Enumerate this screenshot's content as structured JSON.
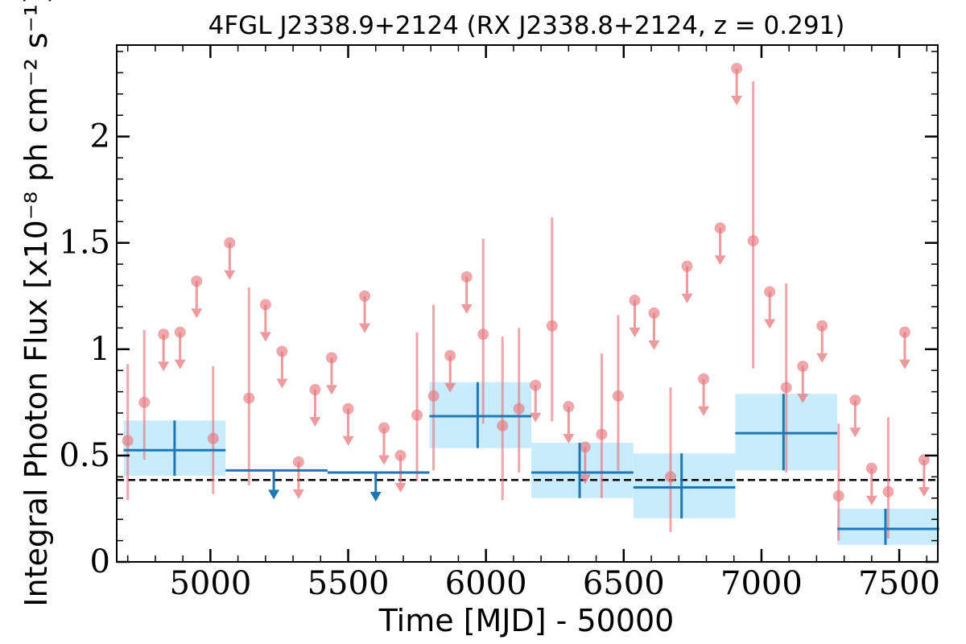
{
  "chart_data": {
    "type": "scatter",
    "title": "4FGL J2338.9+2124 (RX J2338.8+2124, z = 0.291)",
    "xlabel": "Time [MJD] - 50000",
    "ylabel": "Integral Photon Flux [x10⁻⁸ ph cm⁻² s⁻¹]",
    "xlim": [
      4660,
      7640
    ],
    "ylim": [
      0,
      2.43
    ],
    "x_ticks": [
      5000,
      5500,
      6000,
      6500,
      7000,
      7500
    ],
    "x_tick_labels": [
      "5000",
      "5500",
      "6000",
      "6500",
      "7000",
      "7500"
    ],
    "y_ticks": [
      0,
      0.5,
      1,
      1.5,
      2
    ],
    "y_tick_labels": [
      "0",
      "0.5",
      "1",
      "1.5",
      "2"
    ],
    "reference_line": {
      "y": 0.385,
      "style": "dashed",
      "color": "#000000"
    },
    "colors": {
      "short_bins": "#e6787e",
      "long_bins": "#1f77b4",
      "long_band": "#c9ecfc"
    },
    "series": [
      {
        "points": [
          {
            "x": 4700,
            "y": 0.57,
            "ylo": 0.29,
            "yhi": 0.93
          },
          {
            "x": 4760,
            "y": 0.75,
            "ylo": 0.48,
            "yhi": 1.09
          },
          {
            "x": 4830,
            "y": 1.07,
            "ul": true
          },
          {
            "x": 4890,
            "y": 1.08,
            "ul": true
          },
          {
            "x": 4950,
            "y": 1.32,
            "ul": true
          },
          {
            "x": 5010,
            "y": 0.58,
            "ylo": 0.32,
            "yhi": 0.92
          },
          {
            "x": 5070,
            "y": 1.5,
            "ul": true
          },
          {
            "x": 5140,
            "y": 0.77,
            "ylo": 0.36,
            "yhi": 1.29
          },
          {
            "x": 5200,
            "y": 1.21,
            "ul": true
          },
          {
            "x": 5260,
            "y": 0.99,
            "ul": true
          },
          {
            "x": 5320,
            "y": 0.47,
            "ul": true
          },
          {
            "x": 5380,
            "y": 0.81,
            "ul": true
          },
          {
            "x": 5440,
            "y": 0.96,
            "ul": true
          },
          {
            "x": 5500,
            "y": 0.72,
            "ul": true
          },
          {
            "x": 5560,
            "y": 1.25,
            "ul": true
          },
          {
            "x": 5630,
            "y": 0.63,
            "ul": true
          },
          {
            "x": 5690,
            "y": 0.5,
            "ul": true
          },
          {
            "x": 5750,
            "y": 0.69,
            "ylo": 0.38,
            "yhi": 1.08
          },
          {
            "x": 5810,
            "y": 0.78,
            "ylo": 0.43,
            "yhi": 1.21
          },
          {
            "x": 5870,
            "y": 0.97,
            "ul": true
          },
          {
            "x": 5930,
            "y": 1.34,
            "ul": true
          },
          {
            "x": 5990,
            "y": 1.07,
            "ylo": 0.65,
            "yhi": 1.52
          },
          {
            "x": 6060,
            "y": 0.64,
            "ylo": 0.29,
            "yhi": 1.06
          },
          {
            "x": 6120,
            "y": 0.72,
            "ylo": 0.42,
            "yhi": 1.1
          },
          {
            "x": 6180,
            "y": 0.83,
            "ul": true
          },
          {
            "x": 6240,
            "y": 1.11,
            "ylo": 0.66,
            "yhi": 1.62
          },
          {
            "x": 6300,
            "y": 0.73,
            "ul": true
          },
          {
            "x": 6360,
            "y": 0.54,
            "ul": true
          },
          {
            "x": 6420,
            "y": 0.6,
            "ylo": 0.3,
            "yhi": 0.98
          },
          {
            "x": 6480,
            "y": 0.78,
            "ylo": 0.43,
            "yhi": 1.16
          },
          {
            "x": 6540,
            "y": 1.23,
            "ul": true
          },
          {
            "x": 6610,
            "y": 1.17,
            "ul": true
          },
          {
            "x": 6670,
            "y": 0.4,
            "ylo": 0.14,
            "yhi": 0.82
          },
          {
            "x": 6730,
            "y": 1.39,
            "ul": true
          },
          {
            "x": 6790,
            "y": 0.86,
            "ul": true
          },
          {
            "x": 6850,
            "y": 1.57,
            "ul": true
          },
          {
            "x": 6910,
            "y": 2.32,
            "ul": true
          },
          {
            "x": 6970,
            "y": 1.51,
            "ylo": 0.91,
            "yhi": 2.26
          },
          {
            "x": 7030,
            "y": 1.27,
            "ul": true
          },
          {
            "x": 7090,
            "y": 0.82,
            "ylo": 0.42,
            "yhi": 1.31
          },
          {
            "x": 7150,
            "y": 0.92,
            "ul": true
          },
          {
            "x": 7220,
            "y": 1.11,
            "ul": true
          },
          {
            "x": 7280,
            "y": 0.31,
            "ylo": 0.1,
            "yhi": 0.65
          },
          {
            "x": 7340,
            "y": 0.76,
            "ul": true
          },
          {
            "x": 7400,
            "y": 0.44,
            "ul": true
          },
          {
            "x": 7460,
            "y": 0.33,
            "ylo": 0.11,
            "yhi": 0.68
          },
          {
            "x": 7520,
            "y": 1.08,
            "ul": true
          },
          {
            "x": 7590,
            "y": 0.48,
            "ul": true
          }
        ]
      },
      {
        "bins": [
          {
            "x": 4870,
            "x0": 4685,
            "x1": 5055,
            "y": 0.525,
            "ylo": 0.405,
            "yhi": 0.665
          },
          {
            "x": 5230,
            "x0": 5055,
            "x1": 5425,
            "y": 0.43,
            "ul": true
          },
          {
            "x": 5600,
            "x0": 5425,
            "x1": 5795,
            "y": 0.42,
            "ul": true
          },
          {
            "x": 5970,
            "x0": 5795,
            "x1": 6165,
            "y": 0.685,
            "ylo": 0.535,
            "yhi": 0.845
          },
          {
            "x": 6340,
            "x0": 6165,
            "x1": 6535,
            "y": 0.42,
            "ylo": 0.3,
            "yhi": 0.56
          },
          {
            "x": 6710,
            "x0": 6535,
            "x1": 6905,
            "y": 0.35,
            "ylo": 0.205,
            "yhi": 0.51
          },
          {
            "x": 7080,
            "x0": 6905,
            "x1": 7275,
            "y": 0.605,
            "ylo": 0.43,
            "yhi": 0.79
          },
          {
            "x": 7450,
            "x0": 7275,
            "x1": 7645,
            "y": 0.155,
            "ylo": 0.08,
            "yhi": 0.25
          }
        ]
      }
    ]
  }
}
